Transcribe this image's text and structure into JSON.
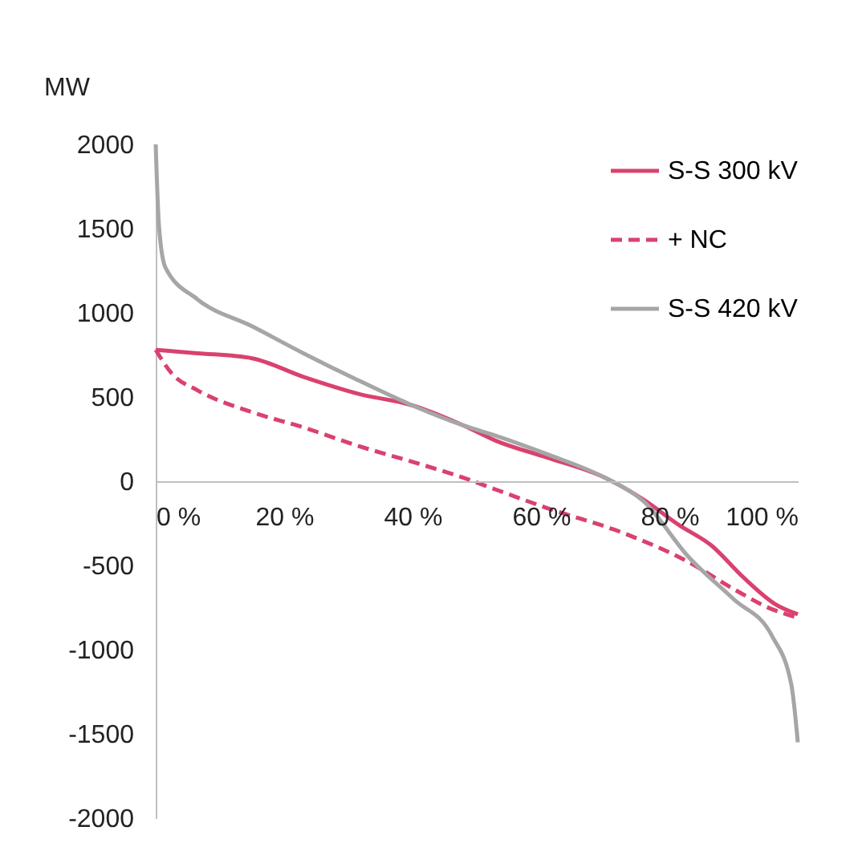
{
  "chart_data": {
    "type": "line",
    "ylabel": "MW",
    "xlim": [
      0,
      100
    ],
    "xticks": [
      {
        "value": 0,
        "label": "0 %"
      },
      {
        "value": 20,
        "label": "20 %"
      },
      {
        "value": 40,
        "label": "40 %"
      },
      {
        "value": 60,
        "label": "60 %"
      },
      {
        "value": 80,
        "label": "80 %"
      },
      {
        "value": 100,
        "label": "100 %"
      }
    ],
    "ylim": [
      -2000,
      2000
    ],
    "yticks": [
      -2000,
      -1500,
      -1000,
      -500,
      0,
      500,
      1000,
      1500,
      2000
    ],
    "grid": false,
    "legend": "top right",
    "series": [
      {
        "name": "S-S 300 kV",
        "color": "#d9426e",
        "line_style": "solid",
        "x": [
          0,
          6.5,
          15,
          23,
          31.5,
          40,
          48,
          53,
          61,
          70,
          76,
          81.5,
          86.5,
          91.5,
          96.5,
          100
        ],
        "values": [
          780,
          760,
          730,
          620,
          520,
          450,
          330,
          240,
          140,
          20,
          -110,
          -260,
          -380,
          -570,
          -730,
          -790
        ]
      },
      {
        "name": "+ NC",
        "color": "#d9426e",
        "line_style": "dashed",
        "x": [
          0,
          2.5,
          6.5,
          15,
          23,
          31.5,
          40,
          48,
          53,
          61,
          73,
          83,
          90,
          96,
          100
        ],
        "values": [
          780,
          640,
          540,
          410,
          320,
          210,
          115,
          20,
          -50,
          -160,
          -310,
          -480,
          -640,
          -760,
          -810
        ]
      },
      {
        "name": "S-S 420 kV",
        "color": "#a6a6a6",
        "line_style": "solid",
        "x": [
          0,
          0.5,
          1.5,
          6.5,
          15,
          23,
          31.5,
          40,
          48,
          53,
          61,
          70,
          76,
          83,
          90,
          96,
          99,
          100
        ],
        "values": [
          2000,
          1520,
          1270,
          1080,
          920,
          760,
          600,
          450,
          330,
          270,
          160,
          20,
          -120,
          -450,
          -700,
          -920,
          -1210,
          -1550
        ]
      }
    ]
  }
}
